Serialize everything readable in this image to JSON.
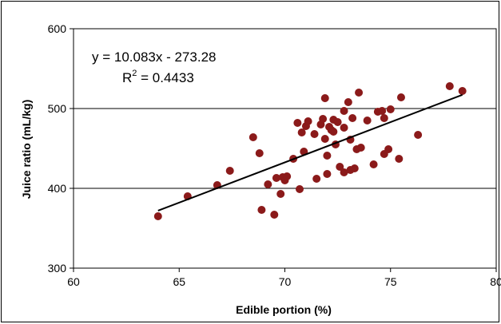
{
  "chart_data": {
    "type": "scatter",
    "title": "",
    "xlabel": "Edible portion (%)",
    "ylabel": "Juice ratio (mL/kg)",
    "xlim": [
      60,
      80
    ],
    "ylim": [
      300,
      600
    ],
    "x_ticks": [
      "60",
      "65",
      "70",
      "75",
      "80"
    ],
    "y_ticks": [
      "300",
      "400",
      "500",
      "600"
    ],
    "grid": "horizontal major",
    "marker_color": "#8B1A1A",
    "trendline": {
      "slope": 10.083,
      "intercept": -273.28,
      "x_range": [
        64.0,
        78.4
      ],
      "equation": "y = 10.083x - 273.28",
      "r2_label": "R",
      "r2_exp": "2",
      "r2_value": " = 0.4433"
    },
    "points": [
      [
        64.0,
        365
      ],
      [
        65.4,
        390
      ],
      [
        66.8,
        404
      ],
      [
        67.4,
        422
      ],
      [
        68.5,
        464
      ],
      [
        68.8,
        444
      ],
      [
        68.9,
        373
      ],
      [
        69.2,
        405
      ],
      [
        69.5,
        367
      ],
      [
        69.6,
        413
      ],
      [
        69.8,
        393
      ],
      [
        69.9,
        414
      ],
      [
        70.0,
        410
      ],
      [
        70.1,
        415
      ],
      [
        70.4,
        437
      ],
      [
        70.6,
        482
      ],
      [
        70.7,
        399
      ],
      [
        70.8,
        470
      ],
      [
        70.9,
        446
      ],
      [
        71.0,
        478
      ],
      [
        71.1,
        484
      ],
      [
        71.4,
        468
      ],
      [
        71.5,
        412
      ],
      [
        71.7,
        480
      ],
      [
        71.8,
        487
      ],
      [
        71.9,
        513
      ],
      [
        71.9,
        462
      ],
      [
        72.0,
        418
      ],
      [
        72.0,
        441
      ],
      [
        72.1,
        477
      ],
      [
        72.2,
        473
      ],
      [
        72.3,
        486
      ],
      [
        72.3,
        471
      ],
      [
        72.4,
        455
      ],
      [
        72.5,
        483
      ],
      [
        72.6,
        427
      ],
      [
        72.8,
        420
      ],
      [
        72.8,
        476
      ],
      [
        72.8,
        497
      ],
      [
        73.0,
        508
      ],
      [
        73.1,
        461
      ],
      [
        73.1,
        423
      ],
      [
        73.2,
        488
      ],
      [
        73.3,
        425
      ],
      [
        73.4,
        449
      ],
      [
        73.5,
        520
      ],
      [
        73.6,
        451
      ],
      [
        73.9,
        485
      ],
      [
        74.2,
        430
      ],
      [
        74.4,
        496
      ],
      [
        74.6,
        497
      ],
      [
        74.7,
        443
      ],
      [
        74.7,
        488
      ],
      [
        74.9,
        449
      ],
      [
        75.0,
        499
      ],
      [
        75.4,
        437
      ],
      [
        75.5,
        514
      ],
      [
        76.3,
        467
      ],
      [
        77.8,
        528
      ],
      [
        78.4,
        522
      ]
    ]
  }
}
